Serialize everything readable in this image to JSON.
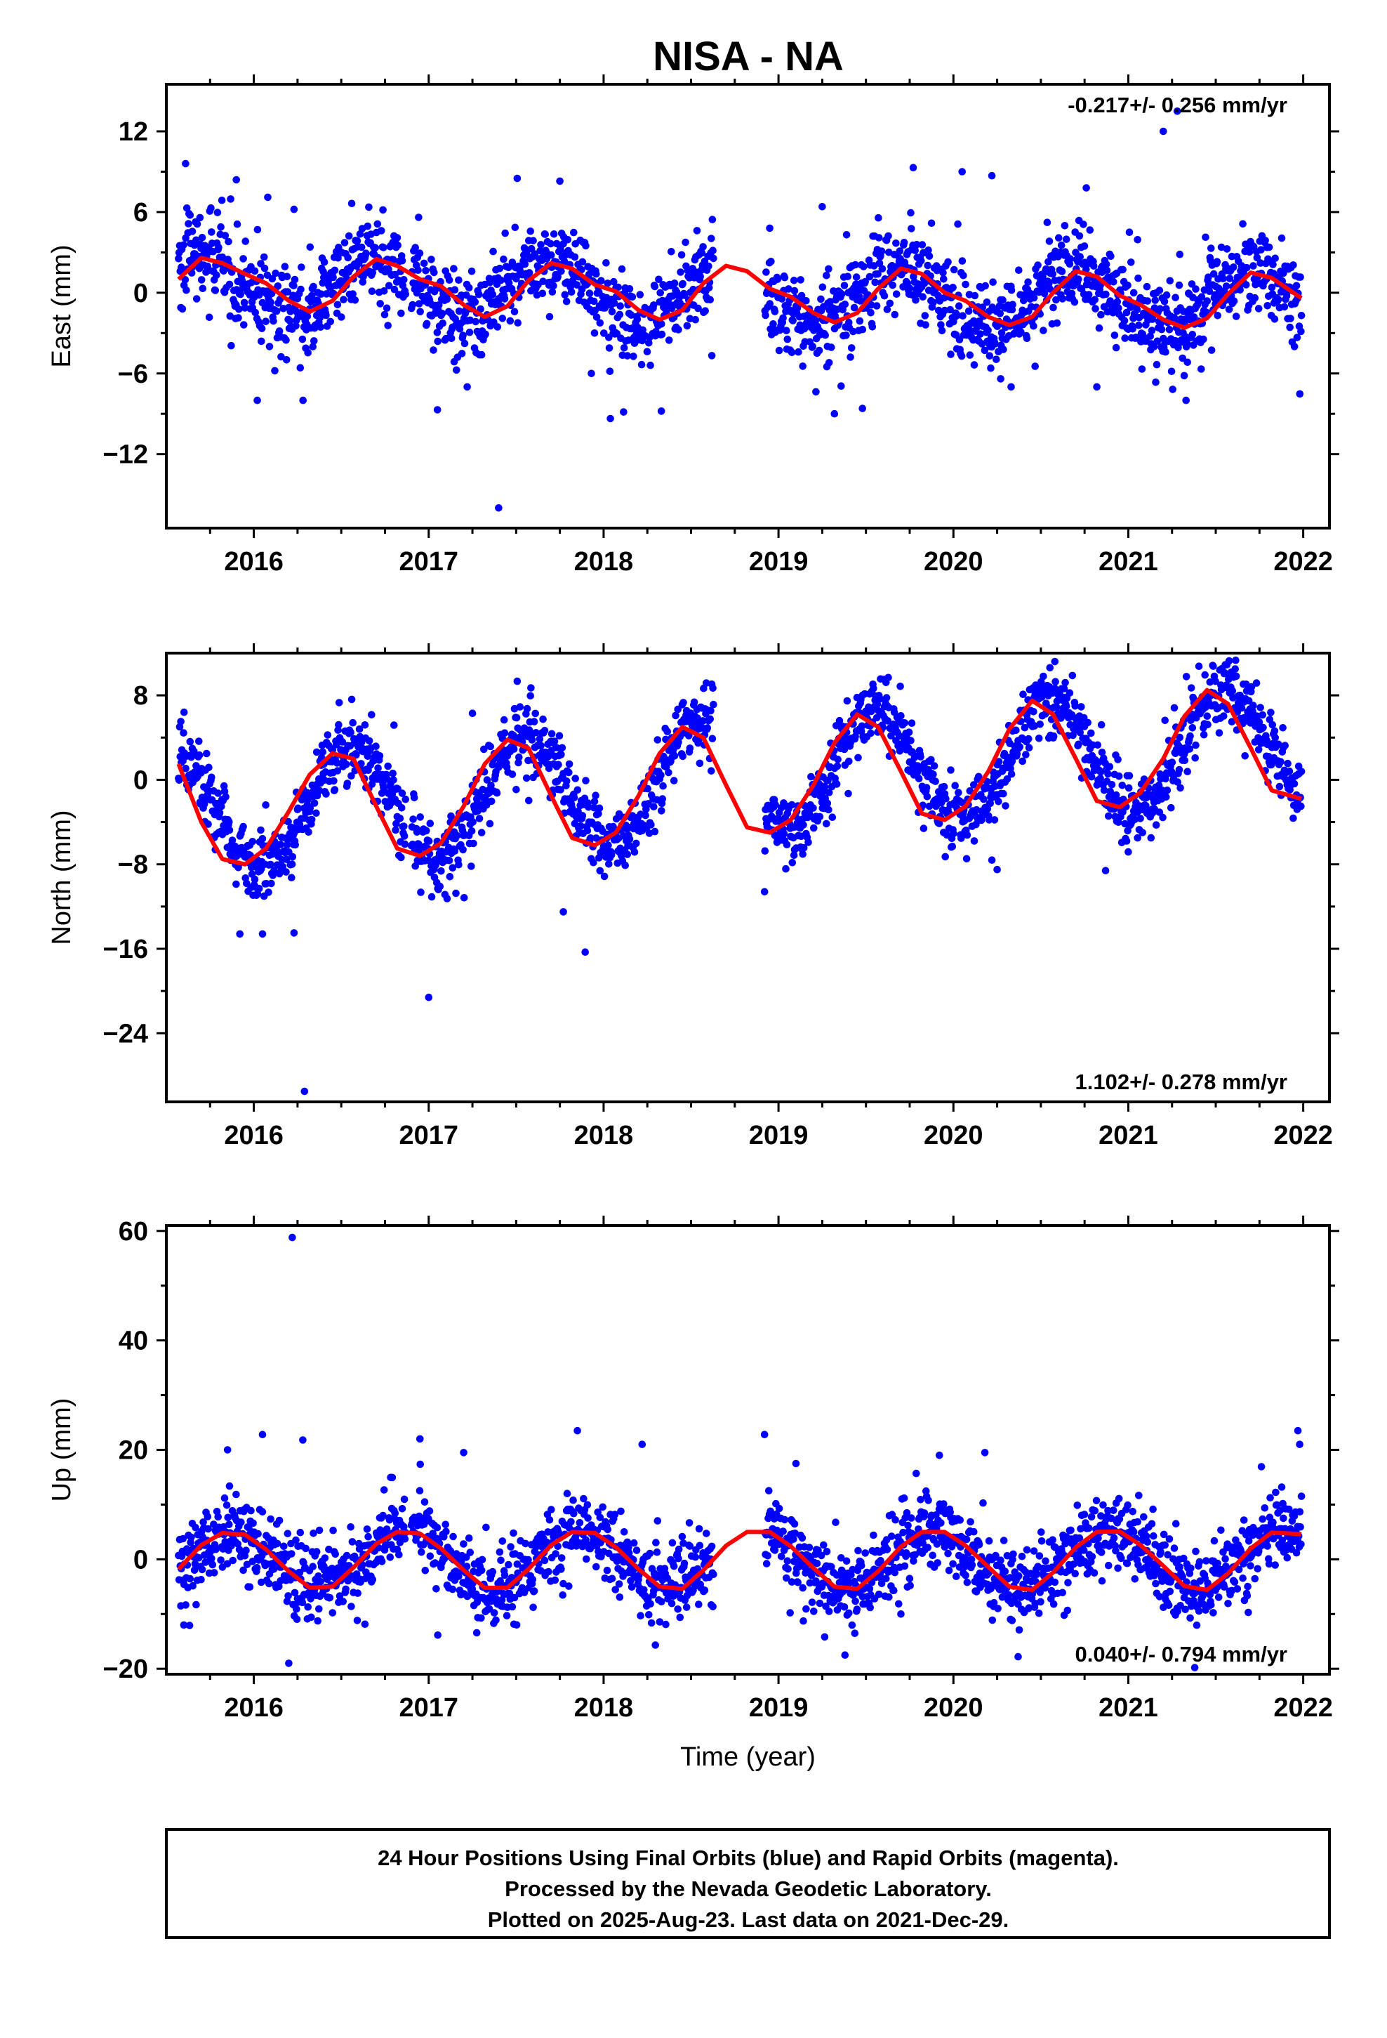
{
  "title": "NISA - NA",
  "footer": {
    "lines": [
      "24 Hour Positions Using Final Orbits (blue) and Rapid Orbits (magenta).",
      "Processed by the Nevada Geodetic Laboratory.",
      "Plotted on 2025-Aug-23. Last data on 2021-Dec-29."
    ]
  },
  "colors": {
    "points": "#0000ff",
    "fit": "#ff0000",
    "frame": "#000000"
  },
  "chart_data": [
    {
      "type": "scatter",
      "component": "east",
      "ylabel": "East (mm)",
      "xlabel": "",
      "xlim": [
        2015.5,
        2022.15
      ],
      "ylim": [
        -17.5,
        15.5
      ],
      "xticks": [
        2016,
        2017,
        2018,
        2019,
        2020,
        2021,
        2022
      ],
      "xtick_labels": [
        "2016",
        "2017",
        "2018",
        "2019",
        "2020",
        "2021",
        "2022"
      ],
      "yticks": [
        12,
        6,
        0,
        -6,
        -12
      ],
      "ytick_labels": [
        "12",
        "6",
        "0",
        "−6",
        "−12"
      ],
      "rate_text": "-0.217+/- 0.256 mm/yr",
      "rate_position": "top-right",
      "model": {
        "rate": -0.217,
        "amp": 2.2,
        "phase_peak": 0.7,
        "semi_amp": 0.0,
        "ref_epoch": 2018.7,
        "scatter_sd": 1.6
      },
      "gaps": [
        [
          2016.87,
          2016.9
        ],
        [
          2018.63,
          2018.92
        ]
      ],
      "start": 2015.57,
      "end": 2021.99,
      "outliers": [
        [
          2015.61,
          9.6
        ],
        [
          2015.9,
          8.4
        ],
        [
          2016.02,
          -8.0
        ],
        [
          2016.08,
          7.1
        ],
        [
          2016.23,
          6.2
        ],
        [
          2016.12,
          -5.8
        ],
        [
          2017.05,
          -8.7
        ],
        [
          2017.22,
          -7.0
        ],
        [
          2017.4,
          -16.0
        ],
        [
          2017.75,
          8.3
        ],
        [
          2017.93,
          -6.0
        ],
        [
          2018.33,
          -8.8
        ],
        [
          2018.95,
          4.8
        ],
        [
          2019.25,
          6.4
        ],
        [
          2019.32,
          -9.0
        ],
        [
          2019.48,
          -8.6
        ],
        [
          2019.77,
          9.3
        ],
        [
          2020.05,
          9.0
        ],
        [
          2020.22,
          8.7
        ],
        [
          2020.27,
          -6.4
        ],
        [
          2020.33,
          -7.0
        ],
        [
          2020.76,
          7.8
        ],
        [
          2020.82,
          -7.0
        ],
        [
          2021.2,
          12.0
        ],
        [
          2021.28,
          13.5
        ],
        [
          2021.33,
          -8.0
        ],
        [
          2021.95,
          -4.0
        ]
      ],
      "fit": {
        "x": [
          2015.57,
          2015.7,
          2015.82,
          2015.95,
          2016.07,
          2016.2,
          2016.32,
          2016.45,
          2016.57,
          2016.7,
          2016.82,
          2016.95,
          2017.07,
          2017.2,
          2017.32,
          2017.45,
          2017.57,
          2017.7,
          2017.82,
          2017.95,
          2018.07,
          2018.2,
          2018.32,
          2018.45,
          2018.57,
          2018.7,
          2018.82,
          2018.95,
          2019.07,
          2019.2,
          2019.32,
          2019.45,
          2019.57,
          2019.7,
          2019.82,
          2019.95,
          2020.07,
          2020.2,
          2020.32,
          2020.45,
          2020.57,
          2020.7,
          2020.82,
          2020.95,
          2021.07,
          2021.2,
          2021.32,
          2021.45,
          2021.57,
          2021.7,
          2021.82,
          2021.99
        ],
        "y": [
          1.0,
          2.6,
          2.2,
          1.4,
          0.7,
          -0.6,
          -1.4,
          -0.6,
          1.2,
          2.5,
          2.0,
          1.0,
          0.5,
          -0.9,
          -1.8,
          -1.0,
          0.9,
          2.2,
          1.8,
          0.6,
          0.1,
          -1.3,
          -2.0,
          -1.3,
          0.7,
          2.0,
          1.6,
          0.3,
          -0.3,
          -1.5,
          -2.2,
          -1.5,
          0.3,
          1.8,
          1.4,
          0.0,
          -0.6,
          -1.8,
          -2.4,
          -1.8,
          0.0,
          1.6,
          1.2,
          -0.2,
          -0.9,
          -2.0,
          -2.6,
          -1.9,
          -0.1,
          1.5,
          1.1,
          -0.4
        ]
      }
    },
    {
      "type": "scatter",
      "component": "north",
      "ylabel": "North (mm)",
      "xlabel": "",
      "xlim": [
        2015.5,
        2022.15
      ],
      "ylim": [
        -30.5,
        12.0
      ],
      "xticks": [
        2016,
        2017,
        2018,
        2019,
        2020,
        2021,
        2022
      ],
      "xtick_labels": [
        "2016",
        "2017",
        "2018",
        "2019",
        "2020",
        "2021",
        "2022"
      ],
      "yticks": [
        8,
        0,
        -8,
        -16,
        -24
      ],
      "ytick_labels": [
        "8",
        "0",
        "−8",
        "−16",
        "−24"
      ],
      "rate_text": "1.102+/- 0.278 mm/yr",
      "rate_position": "bottom-right",
      "model": {
        "rate": 1.102,
        "amp": 5.5,
        "phase_peak": 0.55,
        "semi_amp": 0.0,
        "ref_epoch": 2018.7,
        "scatter_sd": 1.6
      },
      "gaps": [
        [
          2016.87,
          2016.9
        ],
        [
          2018.63,
          2018.92
        ]
      ],
      "start": 2015.57,
      "end": 2021.99,
      "outliers": [
        [
          2015.92,
          -14.6
        ],
        [
          2016.05,
          -14.6
        ],
        [
          2016.23,
          -14.5
        ],
        [
          2016.29,
          -29.5
        ],
        [
          2017.0,
          -20.6
        ],
        [
          2017.25,
          6.3
        ],
        [
          2017.77,
          -12.5
        ],
        [
          2018.92,
          -10.6
        ],
        [
          2019.83,
          -4.6
        ],
        [
          2020.22,
          -7.6
        ],
        [
          2020.25,
          -8.5
        ],
        [
          2020.58,
          11.2
        ],
        [
          2020.87,
          -8.6
        ],
        [
          2021.13,
          -5.5
        ]
      ],
      "fit": {
        "x": [
          2015.57,
          2015.7,
          2015.82,
          2015.95,
          2016.07,
          2016.2,
          2016.32,
          2016.45,
          2016.57,
          2016.7,
          2016.82,
          2016.95,
          2017.07,
          2017.2,
          2017.32,
          2017.45,
          2017.57,
          2017.7,
          2017.82,
          2017.95,
          2018.07,
          2018.2,
          2018.32,
          2018.45,
          2018.57,
          2018.7,
          2018.82,
          2018.95,
          2019.07,
          2019.2,
          2019.32,
          2019.45,
          2019.57,
          2019.7,
          2019.82,
          2019.95,
          2020.07,
          2020.2,
          2020.32,
          2020.45,
          2020.57,
          2020.7,
          2020.82,
          2020.95,
          2021.07,
          2021.2,
          2021.32,
          2021.45,
          2021.57,
          2021.7,
          2021.82,
          2021.99
        ],
        "y": [
          1.5,
          -4.0,
          -7.5,
          -8.0,
          -6.5,
          -3.0,
          0.5,
          2.5,
          2.0,
          -2.5,
          -6.5,
          -7.2,
          -6.0,
          -2.5,
          1.5,
          3.8,
          3.0,
          -1.5,
          -5.5,
          -6.2,
          -5.0,
          -1.5,
          2.5,
          5.0,
          4.0,
          -0.5,
          -4.5,
          -5.0,
          -3.8,
          -0.5,
          3.5,
          6.2,
          5.0,
          0.8,
          -3.2,
          -3.8,
          -2.5,
          0.8,
          4.8,
          7.5,
          6.2,
          2.0,
          -2.0,
          -2.6,
          -1.2,
          2.0,
          6.0,
          8.5,
          7.2,
          3.0,
          -1.0,
          -1.8
        ]
      }
    },
    {
      "type": "scatter",
      "component": "up",
      "ylabel": "Up (mm)",
      "xlabel": "Time (year)",
      "xlim": [
        2015.5,
        2022.15
      ],
      "ylim": [
        -21.0,
        61.0
      ],
      "xticks": [
        2016,
        2017,
        2018,
        2019,
        2020,
        2021,
        2022
      ],
      "xtick_labels": [
        "2016",
        "2017",
        "2018",
        "2019",
        "2020",
        "2021",
        "2022"
      ],
      "yticks": [
        60,
        40,
        20,
        0,
        -20
      ],
      "ytick_labels": [
        "60",
        "40",
        "20",
        "0",
        "−20"
      ],
      "rate_text": "0.040+/- 0.794 mm/yr",
      "rate_position": "bottom-right",
      "model": {
        "rate": 0.04,
        "amp": 5.2,
        "phase_peak": 0.88,
        "semi_amp": 0.0,
        "ref_epoch": 2018.7,
        "scatter_sd": 3.4
      },
      "gaps": [
        [
          2016.87,
          2016.9
        ],
        [
          2018.63,
          2018.92
        ]
      ],
      "start": 2015.57,
      "end": 2021.99,
      "outliers": [
        [
          2015.6,
          -12.0
        ],
        [
          2015.85,
          20.0
        ],
        [
          2016.05,
          22.8
        ],
        [
          2016.22,
          58.8
        ],
        [
          2016.2,
          -19.0
        ],
        [
          2016.28,
          21.8
        ],
        [
          2016.95,
          22.0
        ],
        [
          2017.2,
          19.5
        ],
        [
          2017.85,
          23.5
        ],
        [
          2018.22,
          21.0
        ],
        [
          2018.92,
          22.8
        ],
        [
          2019.1,
          17.5
        ],
        [
          2019.38,
          -17.5
        ],
        [
          2019.7,
          -10.0
        ],
        [
          2019.92,
          19.0
        ],
        [
          2020.18,
          19.5
        ],
        [
          2020.37,
          -17.8
        ],
        [
          2021.38,
          -19.8
        ],
        [
          2021.97,
          23.5
        ],
        [
          2021.98,
          21.0
        ]
      ],
      "fit": {
        "x": [
          2015.57,
          2015.7,
          2015.82,
          2015.95,
          2016.07,
          2016.2,
          2016.32,
          2016.45,
          2016.57,
          2016.7,
          2016.82,
          2016.95,
          2017.07,
          2017.2,
          2017.32,
          2017.45,
          2017.57,
          2017.7,
          2017.82,
          2017.95,
          2018.07,
          2018.2,
          2018.32,
          2018.45,
          2018.57,
          2018.7,
          2018.82,
          2018.95,
          2019.07,
          2019.2,
          2019.32,
          2019.45,
          2019.57,
          2019.7,
          2019.82,
          2019.95,
          2020.07,
          2020.2,
          2020.32,
          2020.45,
          2020.57,
          2020.7,
          2020.82,
          2020.95,
          2021.07,
          2021.2,
          2021.32,
          2021.45,
          2021.57,
          2021.7,
          2021.82,
          2021.99
        ],
        "y": [
          -1.8,
          2.6,
          4.8,
          4.5,
          1.8,
          -2.2,
          -5.2,
          -5.0,
          -1.5,
          2.8,
          5.0,
          4.7,
          2.0,
          -2.0,
          -5.2,
          -5.2,
          -1.8,
          2.6,
          5.0,
          4.8,
          2.2,
          -1.8,
          -5.0,
          -5.4,
          -2.0,
          2.5,
          5.0,
          5.0,
          2.4,
          -1.6,
          -5.0,
          -5.4,
          -2.2,
          2.3,
          5.0,
          5.0,
          2.5,
          -1.4,
          -5.0,
          -5.6,
          -2.4,
          2.2,
          5.0,
          5.1,
          2.6,
          -1.2,
          -4.9,
          -5.6,
          -2.6,
          2.0,
          4.9,
          4.6
        ]
      }
    }
  ]
}
